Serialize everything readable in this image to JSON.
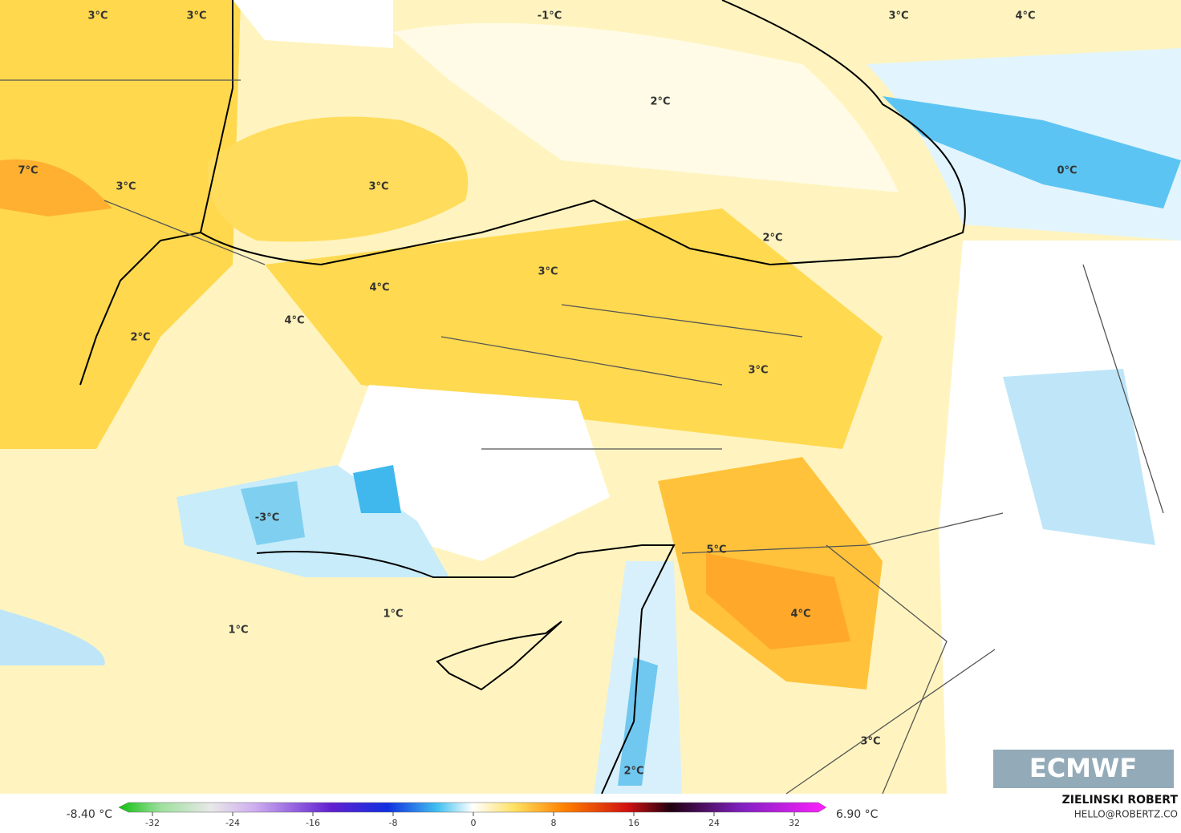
{
  "map": {
    "labels": [
      "3°C",
      "3°C",
      "-1°C",
      "3°C",
      "4°C",
      "2°C",
      "3°C",
      "7°C",
      "3°C",
      "0°C",
      "2°C",
      "3°C",
      "4°C",
      "4°C",
      "2°C",
      "3°C",
      "-3°C",
      "5°C",
      "4°C",
      "1°C",
      "1°C",
      "3°C",
      "2°C"
    ],
    "logo": "ECMWF"
  },
  "colorbar": {
    "min_label": "-8.40 °C",
    "max_label": "6.90 °C",
    "ticks": [
      -32,
      -24,
      -16,
      -8,
      0,
      8,
      16,
      24,
      32
    ]
  },
  "credit": {
    "author": "ZIELINSKI ROBERT",
    "email": "HELLO@ROBERTZ.CO"
  }
}
